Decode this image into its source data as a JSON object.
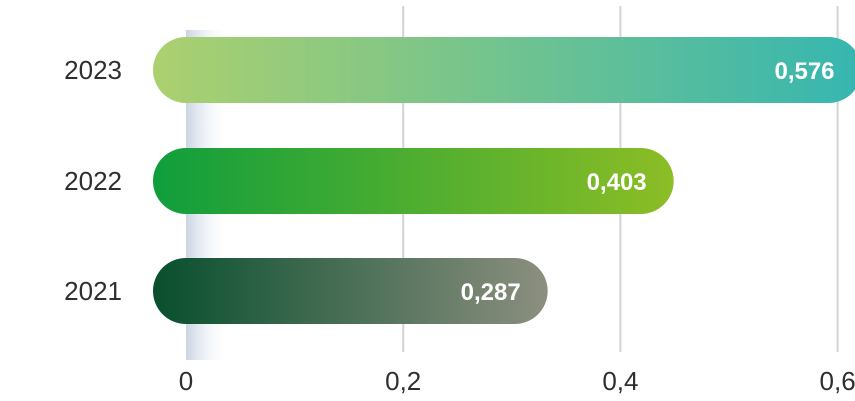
{
  "chart_data": {
    "type": "bar",
    "orientation": "horizontal",
    "categories": [
      "2023",
      "2022",
      "2021"
    ],
    "values": [
      0.576,
      0.403,
      0.287
    ],
    "data_labels": [
      "0,576",
      "0,403",
      "0,287"
    ],
    "xlim": [
      0,
      0.6
    ],
    "x_ticks": [
      0,
      0.2,
      0.4,
      0.6
    ],
    "x_tick_labels": [
      "0",
      "0,2",
      "0,4",
      "0,6"
    ],
    "grid": "vertical",
    "title": "",
    "xlabel": "",
    "ylabel": "",
    "bar_colors": [
      [
        "#acd06f",
        "#36b6b0"
      ],
      [
        "#0f9e3c",
        "#8cbd25"
      ],
      [
        "#084f2e",
        "#8c8f7f"
      ]
    ],
    "gridline_color": "#d4d4d4"
  }
}
